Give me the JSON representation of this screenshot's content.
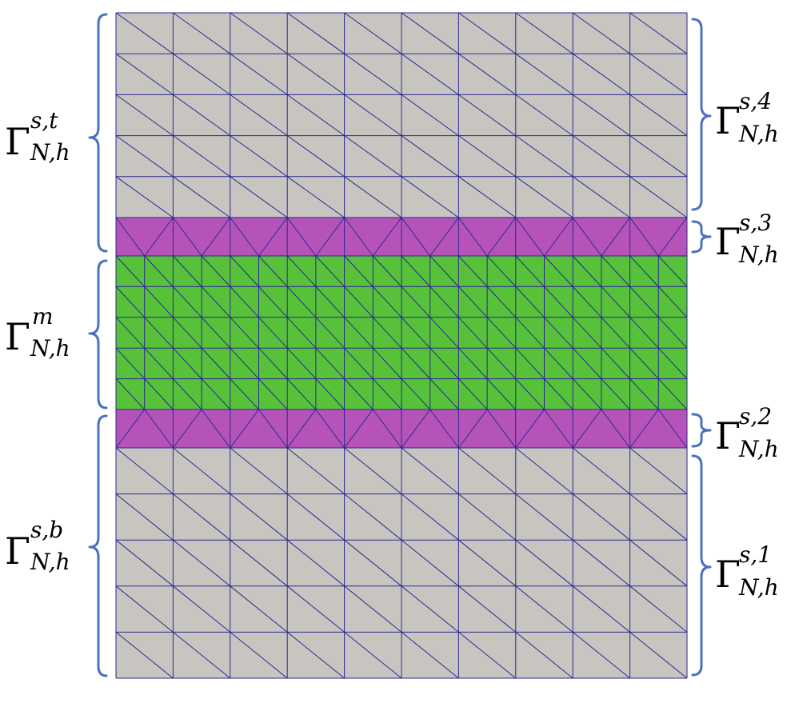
{
  "colors": {
    "solid": "#c8c5c0",
    "interface": "#b553b9",
    "matrix": "#57c13a",
    "mesh_line": "#2a2890",
    "bracket": "#4a72bd"
  },
  "regions": {
    "top": {
      "symbol": "Γ",
      "superscript": "s,t",
      "subscript": "N,h"
    },
    "middle": {
      "symbol": "Γ",
      "superscript": "m",
      "subscript": "N,h"
    },
    "bottom": {
      "symbol": "Γ",
      "superscript": "s,b",
      "subscript": "N,h"
    },
    "sub4": {
      "symbol": "Γ",
      "superscript": "s,4",
      "subscript": "N,h"
    },
    "sub3": {
      "symbol": "Γ",
      "superscript": "s,3",
      "subscript": "N,h"
    },
    "sub2": {
      "symbol": "Γ",
      "superscript": "s,2",
      "subscript": "N,h"
    },
    "sub1": {
      "symbol": "Γ",
      "superscript": "s,1",
      "subscript": "N,h"
    }
  },
  "mesh": {
    "solid_columns": 10,
    "top_solid_rows": 5,
    "bottom_solid_rows": 5,
    "interface_columns": 10,
    "matrix_columns": 20,
    "matrix_rows": 5
  }
}
